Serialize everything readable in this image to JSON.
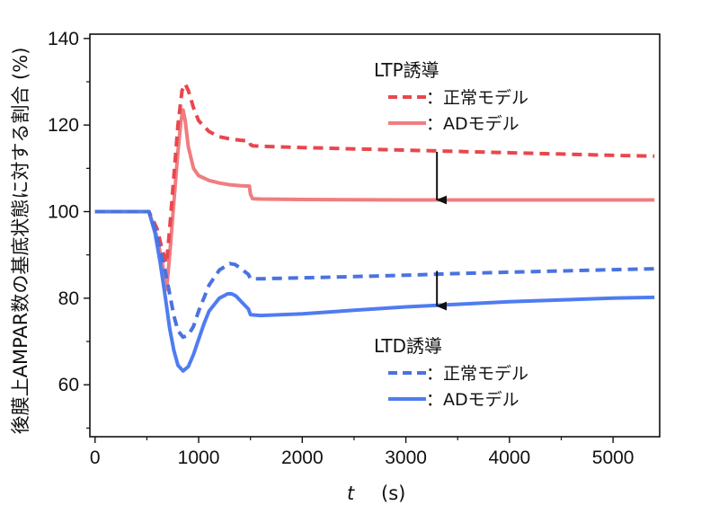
{
  "chart_data": {
    "type": "line",
    "title": "",
    "xlabel_italic": "t",
    "xlabel_unit": "(s)",
    "ylabel": "後膜上AMPAR数の基底状態に対する割合 (%)",
    "xlim": [
      -50,
      5450
    ],
    "ylim": [
      48,
      141
    ],
    "x_ticks": [
      0,
      1000,
      2000,
      3000,
      4000,
      5000
    ],
    "y_ticks": [
      60,
      80,
      100,
      120,
      140
    ],
    "grid": false,
    "legend_groups": [
      {
        "title": "LTP誘導",
        "entries": [
          {
            "label": "：正常モデル",
            "style": "dashed",
            "color": "#e8474d"
          },
          {
            "label": "：ADモデル",
            "style": "solid",
            "color": "#f07d80"
          }
        ]
      },
      {
        "title": "LTD誘導",
        "entries": [
          {
            "label": "：正常モデル",
            "style": "dashed",
            "color": "#4a72e0"
          },
          {
            "label": "：ADモデル",
            "style": "solid",
            "color": "#4f7cf0"
          }
        ]
      }
    ],
    "series": [
      {
        "name": "LTP誘導 正常モデル",
        "color": "#e8474d",
        "style": "dashed",
        "x": [
          0,
          520,
          600,
          650,
          690,
          720,
          760,
          800,
          840,
          870,
          900,
          950,
          1000,
          1100,
          1200,
          1300,
          1400,
          1490,
          1500,
          1520,
          1600,
          2000,
          2500,
          3000,
          3500,
          4000,
          4500,
          5000,
          5400
        ],
        "y": [
          100,
          100,
          96,
          91,
          88,
          96,
          108,
          120,
          128,
          129.5,
          128,
          124,
          121,
          118.5,
          117.3,
          116.8,
          116.5,
          116.3,
          115.5,
          115.2,
          115.1,
          114.8,
          114.5,
          114.2,
          113.9,
          113.6,
          113.3,
          113.0,
          112.8
        ]
      },
      {
        "name": "LTP誘導 ADモデル",
        "color": "#f07d80",
        "style": "solid",
        "x": [
          0,
          520,
          600,
          650,
          690,
          720,
          760,
          800,
          830,
          850,
          870,
          900,
          950,
          1000,
          1100,
          1200,
          1300,
          1400,
          1490,
          1500,
          1520,
          1600,
          2000,
          3000,
          4000,
          5000,
          5400
        ],
        "y": [
          100,
          100,
          94,
          88,
          82,
          90,
          102,
          114,
          121,
          123.5,
          121,
          115,
          110,
          108.3,
          107.2,
          106.6,
          106.2,
          106.0,
          105.9,
          104.0,
          103.0,
          102.9,
          102.8,
          102.7,
          102.7,
          102.7,
          102.7
        ]
      },
      {
        "name": "LTD誘導 正常モデル",
        "color": "#4a72e0",
        "style": "dashed",
        "x": [
          0,
          520,
          580,
          630,
          680,
          720,
          760,
          800,
          850,
          900,
          950,
          1000,
          1100,
          1200,
          1300,
          1350,
          1400,
          1480,
          1500,
          1600,
          2000,
          2500,
          3000,
          3500,
          4000,
          4500,
          5000,
          5400
        ],
        "y": [
          100,
          100,
          96,
          91,
          86,
          81,
          76,
          72.5,
          71,
          71.5,
          73.5,
          77,
          83,
          86.5,
          88,
          87.8,
          87,
          85.5,
          84.5,
          84.5,
          84.7,
          85,
          85.3,
          85.7,
          86,
          86.3,
          86.6,
          86.8
        ]
      },
      {
        "name": "LTD誘導 ADモデル",
        "color": "#4f7cf0",
        "style": "solid",
        "x": [
          0,
          520,
          580,
          630,
          680,
          720,
          760,
          800,
          850,
          900,
          950,
          1000,
          1050,
          1100,
          1200,
          1280,
          1320,
          1360,
          1400,
          1480,
          1500,
          1600,
          2000,
          2500,
          3000,
          3500,
          4000,
          4500,
          5000,
          5400
        ],
        "y": [
          100,
          100,
          95,
          88,
          80,
          73,
          68,
          64.5,
          63.2,
          64.2,
          67,
          70.5,
          74,
          77,
          80,
          81,
          81,
          80.5,
          79.5,
          77.5,
          76.2,
          76,
          76.4,
          77.2,
          78,
          78.6,
          79.2,
          79.6,
          80,
          80.2
        ]
      }
    ],
    "annotations": [
      {
        "type": "arrow-down",
        "x": 3300,
        "y_from": 113.8,
        "y_to": 102.7
      },
      {
        "type": "arrow-down",
        "x": 3300,
        "y_from": 86.3,
        "y_to": 78.2
      }
    ]
  }
}
